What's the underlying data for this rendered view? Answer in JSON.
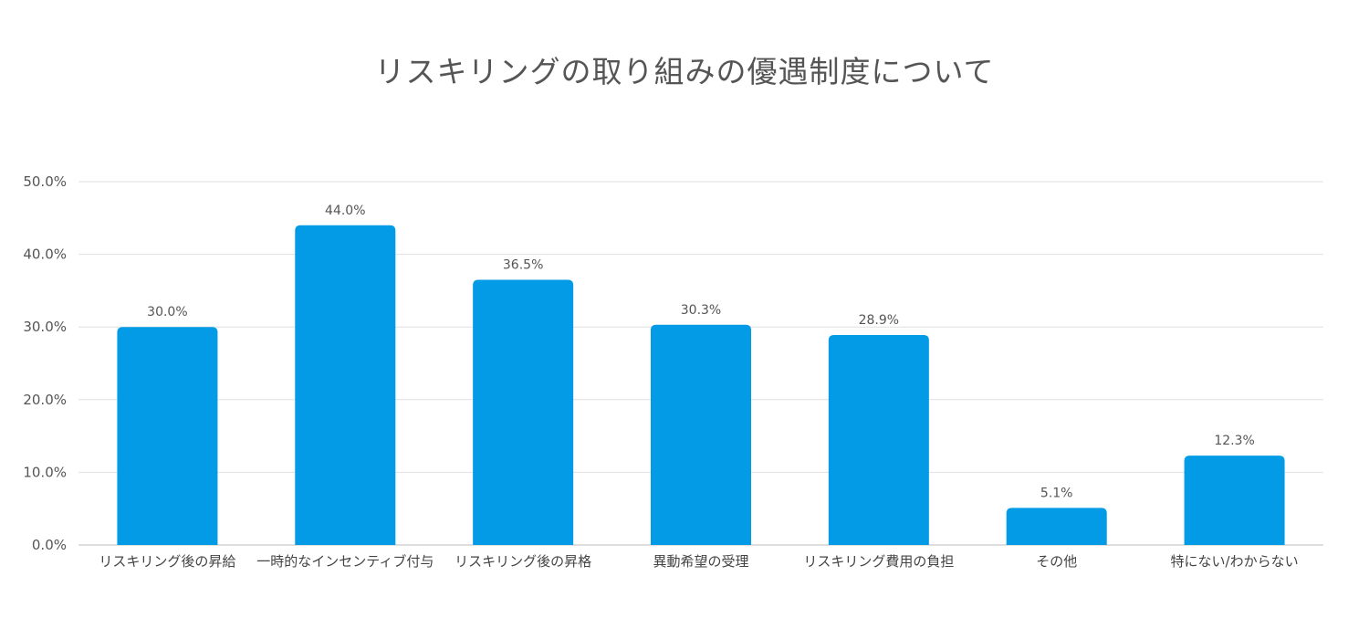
{
  "chart_data": {
    "type": "bar",
    "title": "リスキリングの取り組みの優遇制度について",
    "categories": [
      "リスキリング後の昇給",
      "一時的なインセンティブ付与",
      "リスキリング後の昇格",
      "異動希望の受理",
      "リスキリング費用の負担",
      "その他",
      "特にない/わからない"
    ],
    "values": [
      30.0,
      44.0,
      36.5,
      30.3,
      28.9,
      5.1,
      12.3
    ],
    "value_labels": [
      "30.0%",
      "44.0%",
      "36.5%",
      "30.3%",
      "28.9%",
      "5.1%",
      "12.3%"
    ],
    "yticks": [
      "0.0%",
      "10.0%",
      "20.0%",
      "30.0%",
      "40.0%",
      "50.0%"
    ],
    "ylim": [
      0,
      50
    ],
    "xlabel": "",
    "ylabel": "",
    "bar_color": "#039be5",
    "grid": true
  }
}
